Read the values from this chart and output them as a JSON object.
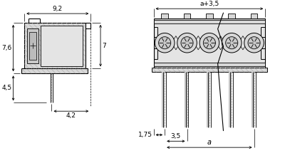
{
  "bg_color": "#ffffff",
  "lc": "#000000",
  "gray1": "#c8c8c8",
  "gray2": "#d8d8d8",
  "gray3": "#e4e4e4",
  "hatch_gray": "#aaaaaa",
  "labels": {
    "dim_92": "9,2",
    "dim_76": "7,6",
    "dim_7": "7",
    "dim_45": "4,5",
    "dim_42": "4,2",
    "dim_a35": "a+3,5",
    "dim_175": "1,75",
    "dim_35": "3,5",
    "dim_a": "a"
  },
  "fs": 6.5
}
